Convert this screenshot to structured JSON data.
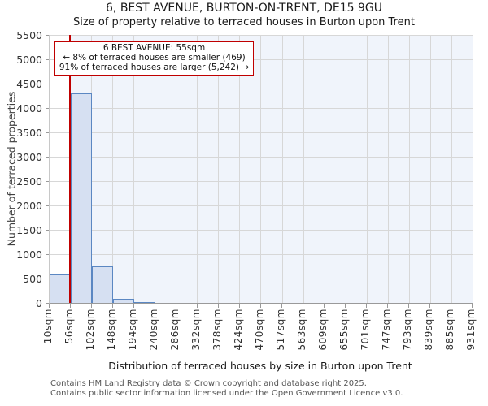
{
  "chart_data": {
    "type": "bar",
    "title": "6, BEST AVENUE, BURTON-ON-TRENT, DE15 9GU",
    "subtitle": "Size of property relative to terraced houses in Burton upon Trent",
    "xlabel": "Distribution of terraced houses by size in Burton upon Trent",
    "ylabel": "Number of terraced properties",
    "categories": [
      "10sqm",
      "56sqm",
      "102sqm",
      "148sqm",
      "194sqm",
      "240sqm",
      "286sqm",
      "332sqm",
      "378sqm",
      "424sqm",
      "470sqm",
      "517sqm",
      "563sqm",
      "609sqm",
      "655sqm",
      "701sqm",
      "747sqm",
      "793sqm",
      "839sqm",
      "885sqm",
      "931sqm"
    ],
    "bin_edges": [
      10,
      56,
      102,
      148,
      194,
      240,
      286,
      332,
      378,
      424,
      470,
      517,
      563,
      609,
      655,
      701,
      747,
      793,
      839,
      885,
      931
    ],
    "values": [
      580,
      4300,
      750,
      80,
      15,
      0,
      0,
      0,
      0,
      0,
      0,
      0,
      0,
      0,
      0,
      0,
      0,
      0,
      0,
      0
    ],
    "ylim": [
      0,
      5500
    ],
    "ytick_step": 500,
    "xlim": [
      10,
      931
    ],
    "grid": "on",
    "legend": "none",
    "marker": {
      "x_value": 55,
      "color": "#c00000"
    },
    "annotation": {
      "lines": [
        "6 BEST AVENUE: 55sqm",
        "← 8% of terraced houses are smaller (469)",
        "91% of terraced houses are larger (5,242) →"
      ]
    }
  },
  "footer": {
    "line1": "Contains HM Land Registry data © Crown copyright and database right 2025.",
    "line2": "Contains public sector information licensed under the Open Government Licence v3.0."
  },
  "colors": {
    "bar_fill": "#d6e0f2",
    "bar_edge": "#5b87c2",
    "marker_line": "#c00000",
    "annotation_border": "#c00000",
    "shaded_region": "#f0f4fb",
    "gridline": "#d7d7d7",
    "axis_spine": "#9a9a9a",
    "footer_text": "#555555"
  }
}
